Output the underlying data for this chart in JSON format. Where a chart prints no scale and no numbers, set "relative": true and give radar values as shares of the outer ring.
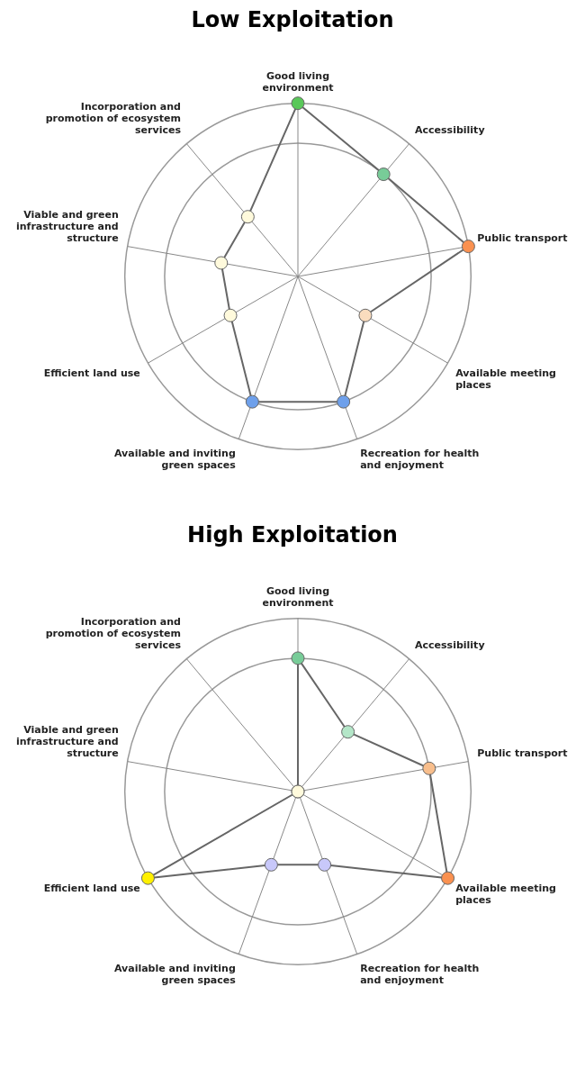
{
  "chart_data": [
    {
      "type": "radar",
      "title": "Low Exploitation",
      "relative": true,
      "grid": true,
      "marker": "circle",
      "categories": [
        "Good living environment",
        "Accessibility",
        "Public transport",
        "Available meeting places",
        "Recreation for health and enjoyment",
        "Available and inviting green spaces",
        "Efficient land use",
        "Viable and green infrastructure and structure",
        "Incorporation and promotion of ecosystem services"
      ],
      "series": [
        {
          "color": "#666666",
          "values": [
            1,
            0.77,
            1,
            0.45,
            0.77,
            0.77,
            0.45,
            0.45,
            0.45
          ],
          "colors": [
            "#5ac85a",
            "#78cc98",
            "#fa9150",
            "#fadcbe",
            "#6ea0eb",
            "#6ea0eb",
            "#fffadc",
            "#fffadc",
            "#fffadc"
          ]
        }
      ]
    },
    {
      "type": "radar",
      "title": "High Exploitation",
      "relative": true,
      "grid": true,
      "marker": "circle",
      "categories": [
        "Good living environment",
        "Accessibility",
        "Public transport",
        "Available meeting places",
        "Recreation for health and enjoyment",
        "Available and inviting green spaces",
        "Efficient land use",
        "Viable and green infrastructure and structure",
        "Incorporation and promotion of ecosystem services"
      ],
      "series": [
        {
          "color": "#666666",
          "values": [
            0.77,
            0.45,
            0.77,
            1,
            0.45,
            0.45,
            1,
            0,
            0
          ],
          "colors": [
            "#78cc98",
            "#b4e6c8",
            "#f8be8c",
            "#fa9150",
            "#c8c8fa",
            "#c8c8fa",
            "#fff000",
            "#fffadc",
            "#fffadc"
          ]
        }
      ]
    }
  ]
}
